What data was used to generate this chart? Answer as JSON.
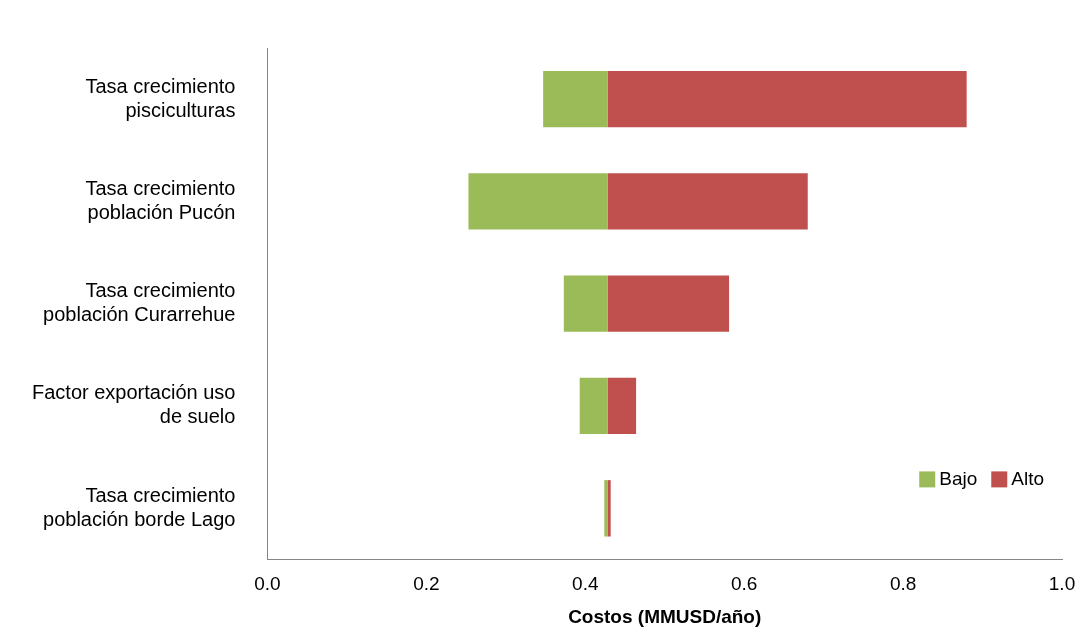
{
  "chart_data": {
    "type": "bar",
    "orientation": "horizontal",
    "stacked": false,
    "categories": [
      "Tasa crecimiento pisciculturas",
      "Tasa crecimiento población Pucón",
      "Tasa crecimiento población Curarrehue",
      "Factor exportación uso de suelo",
      "Tasa crecimiento población borde Lago"
    ],
    "series": [
      {
        "name": "Bajo",
        "color": "#9bbb59",
        "base": [
          0.347,
          0.253,
          0.373,
          0.393,
          0.424
        ],
        "values": [
          0.081,
          0.175,
          0.055,
          0.035,
          0.004
        ]
      },
      {
        "name": "Alto",
        "color": "#c0504d",
        "base": [
          0.428,
          0.428,
          0.428,
          0.428,
          0.428
        ],
        "values": [
          0.452,
          0.252,
          0.153,
          0.036,
          0.004
        ]
      }
    ],
    "xlabel": "Costos (MMUSD/año)",
    "xlim": [
      0,
      1
    ],
    "xticks": [
      {
        "value": 0,
        "label": "0.0"
      },
      {
        "value": 0.2,
        "label": "0.2"
      },
      {
        "value": 0.4,
        "label": "0.4"
      },
      {
        "value": 0.6,
        "label": "0.6"
      },
      {
        "value": 0.8,
        "label": "0.8"
      },
      {
        "value": 1,
        "label": "1.0"
      }
    ],
    "grid": false,
    "legend": "bottom right"
  }
}
